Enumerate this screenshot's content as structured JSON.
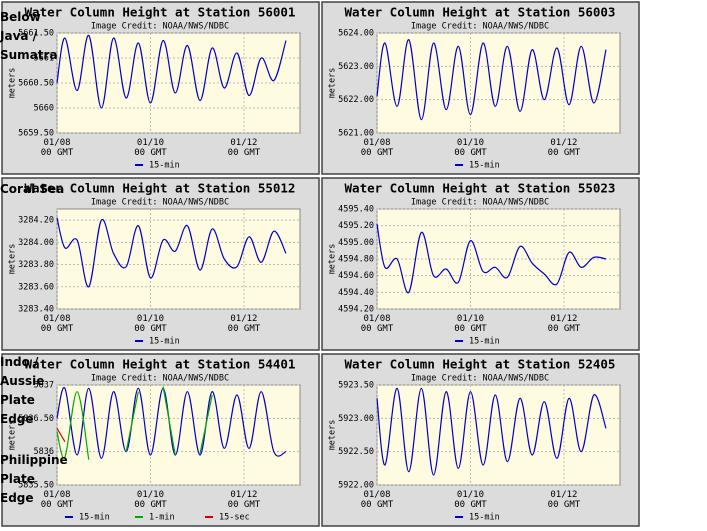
{
  "chart_data": [
    {
      "type": "line",
      "title": "Water Column Height at Station 56001",
      "subtitle": "Image Credit: NOAA/NWS/NDBC",
      "y_label": "meters",
      "x": [
        8.0,
        8.17,
        8.43,
        8.68,
        8.95,
        9.21,
        9.48,
        9.74,
        10.0,
        10.27,
        10.53,
        10.79,
        11.06,
        11.32,
        11.58,
        11.85,
        12.11,
        12.37,
        12.64,
        12.9
      ],
      "series": [
        {
          "name": "15-min",
          "color": "#0000cc",
          "values": [
            5660.5,
            5661.4,
            5660.35,
            5661.45,
            5660.0,
            5661.4,
            5660.2,
            5661.3,
            5660.1,
            5661.35,
            5660.3,
            5661.25,
            5660.15,
            5661.2,
            5660.4,
            5661.1,
            5660.25,
            5661.0,
            5660.55,
            5661.35
          ]
        }
      ],
      "xlim": [
        8,
        13.2
      ],
      "xticks": [
        {
          "value": 8,
          "label": "01/08\n00 GMT"
        },
        {
          "value": 10,
          "label": "01/10\n00 GMT"
        },
        {
          "value": 12,
          "label": "01/12\n00 GMT"
        }
      ],
      "ylim": [
        5659.5,
        5661.5
      ],
      "yticks": [
        {
          "value": 5659.5,
          "label": "5659.50"
        },
        5660,
        {
          "value": 5660.5,
          "label": "5660.50"
        },
        5661,
        {
          "value": 5661.5,
          "label": "5661.50"
        }
      ],
      "grid": true
    },
    {
      "type": "line",
      "title": "Water Column Height at Station 56003",
      "subtitle": "Image Credit: NOAA/NWS/NDBC",
      "y_label": "meters",
      "x": [
        8.0,
        8.17,
        8.43,
        8.68,
        8.95,
        9.21,
        9.48,
        9.74,
        10.0,
        10.27,
        10.53,
        10.79,
        11.06,
        11.32,
        11.58,
        11.85,
        12.11,
        12.37,
        12.64,
        12.9
      ],
      "series": [
        {
          "name": "15-min",
          "color": "#0000cc",
          "values": [
            5622.1,
            5623.7,
            5621.8,
            5623.8,
            5621.4,
            5623.7,
            5621.7,
            5623.6,
            5621.55,
            5623.7,
            5621.8,
            5623.6,
            5621.65,
            5623.5,
            5622.0,
            5623.55,
            5621.85,
            5623.6,
            5621.9,
            5623.5
          ]
        }
      ],
      "xlim": [
        8,
        13.2
      ],
      "xticks": [
        {
          "value": 8,
          "label": "01/08\n00 GMT"
        },
        {
          "value": 10,
          "label": "01/10\n00 GMT"
        },
        {
          "value": 12,
          "label": "01/12\n00 GMT"
        }
      ],
      "ylim": [
        5621,
        5624
      ],
      "yticks": [
        {
          "value": 5621,
          "label": "5621.00"
        },
        {
          "value": 5622,
          "label": "5622.00"
        },
        {
          "value": 5623,
          "label": "5623.00"
        },
        {
          "value": 5624,
          "label": "5624.00"
        }
      ],
      "grid": true
    },
    {
      "type": "line",
      "title": "Water Column Height at Station 55012",
      "subtitle": "Image Credit: NOAA/NWS/NDBC",
      "y_label": "meters",
      "x": [
        8.0,
        8.17,
        8.43,
        8.68,
        8.95,
        9.21,
        9.48,
        9.74,
        10.0,
        10.27,
        10.53,
        10.79,
        11.06,
        11.32,
        11.58,
        11.85,
        12.11,
        12.37,
        12.64,
        12.9
      ],
      "series": [
        {
          "name": "15-min",
          "color": "#0000cc",
          "values": [
            3284.22,
            3283.95,
            3284.02,
            3283.6,
            3284.2,
            3283.9,
            3283.78,
            3284.15,
            3283.68,
            3284.02,
            3283.92,
            3284.15,
            3283.75,
            3284.12,
            3283.85,
            3283.78,
            3284.05,
            3283.82,
            3284.1,
            3283.9
          ]
        }
      ],
      "xlim": [
        8,
        13.2
      ],
      "xticks": [
        {
          "value": 8,
          "label": "01/08\n00 GMT"
        },
        {
          "value": 10,
          "label": "01/10\n00 GMT"
        },
        {
          "value": 12,
          "label": "01/12\n00 GMT"
        }
      ],
      "ylim": [
        3283.4,
        3284.3
      ],
      "yticks": [
        {
          "value": 3283.4,
          "label": "3283.40"
        },
        {
          "value": 3283.6,
          "label": "3283.60"
        },
        {
          "value": 3283.8,
          "label": "3283.80"
        },
        {
          "value": 3284.0,
          "label": "3284.00"
        },
        {
          "value": 3284.2,
          "label": "3284.20"
        }
      ],
      "grid": true
    },
    {
      "type": "line",
      "title": "Water Column Height at Station 55023",
      "subtitle": "Image Credit: NOAA/NWS/NDBC",
      "y_label": "meters",
      "x": [
        8.0,
        8.17,
        8.43,
        8.68,
        8.95,
        9.21,
        9.48,
        9.74,
        10.0,
        10.27,
        10.53,
        10.79,
        11.06,
        11.32,
        11.58,
        11.85,
        12.11,
        12.37,
        12.64,
        12.9
      ],
      "series": [
        {
          "name": "15-min",
          "color": "#0000cc",
          "values": [
            4595.22,
            4594.7,
            4594.8,
            4594.4,
            4595.12,
            4594.6,
            4594.68,
            4594.52,
            4595.02,
            4594.65,
            4594.7,
            4594.58,
            4594.95,
            4594.75,
            4594.62,
            4594.5,
            4594.88,
            4594.7,
            4594.82,
            4594.8
          ]
        }
      ],
      "xlim": [
        8,
        13.2
      ],
      "xticks": [
        {
          "value": 8,
          "label": "01/08\n00 GMT"
        },
        {
          "value": 10,
          "label": "01/10\n00 GMT"
        },
        {
          "value": 12,
          "label": "01/12\n00 GMT"
        }
      ],
      "ylim": [
        4594.2,
        4595.4
      ],
      "yticks": [
        {
          "value": 4594.2,
          "label": "4594.20"
        },
        {
          "value": 4594.4,
          "label": "4594.40"
        },
        {
          "value": 4594.6,
          "label": "4594.60"
        },
        {
          "value": 4594.8,
          "label": "4594.80"
        },
        {
          "value": 4595.0,
          "label": "4595.00"
        },
        {
          "value": 4595.2,
          "label": "4595.20"
        },
        {
          "value": 4595.4,
          "label": "4595.40"
        }
      ],
      "grid": true
    },
    {
      "type": "line",
      "title": "Water Column Height at Station 54401",
      "subtitle": "Image Credit: NOAA/NWS/NDBC",
      "y_label": "meters",
      "x": [
        8.0,
        8.17,
        8.43,
        8.68,
        8.95,
        9.21,
        9.48,
        9.74,
        10.0,
        10.27,
        10.53,
        10.79,
        11.06,
        11.32,
        11.58,
        11.85,
        12.11,
        12.37,
        12.64,
        12.9
      ],
      "series": [
        {
          "name": "15-min",
          "color": "#0000cc",
          "values": [
            5836.5,
            5836.95,
            5835.95,
            5836.95,
            5835.9,
            5836.9,
            5836.0,
            5836.95,
            5835.95,
            5836.95,
            5835.95,
            5836.9,
            5835.95,
            5836.9,
            5836.05,
            5836.85,
            5836.05,
            5836.9,
            5836.0,
            5836.0
          ]
        },
        {
          "name": "1-min",
          "color": "#00aa00",
          "values": [
            5836.3,
            5835.92,
            5836.9,
            5835.88,
            null,
            null,
            5836.0,
            5836.9,
            null,
            5836.98,
            5835.95,
            null,
            5835.97,
            5836.85,
            null,
            null,
            null,
            null,
            null,
            null
          ]
        },
        {
          "name": "15-sec",
          "color": "#cc0000",
          "values": [
            5836.35,
            5836.15,
            null,
            null,
            null,
            null,
            null,
            null,
            null,
            null,
            null,
            null,
            null,
            null,
            null,
            null,
            null,
            null,
            null,
            null
          ]
        }
      ],
      "xlim": [
        8,
        13.2
      ],
      "xticks": [
        {
          "value": 8,
          "label": "01/08\n00 GMT"
        },
        {
          "value": 10,
          "label": "01/10\n00 GMT"
        },
        {
          "value": 12,
          "label": "01/12\n00 GMT"
        }
      ],
      "ylim": [
        5835.5,
        5837
      ],
      "yticks": [
        {
          "value": 5835.5,
          "label": "5835.50"
        },
        5836,
        {
          "value": 5836.5,
          "label": "5836.50"
        },
        5837
      ],
      "grid": true
    },
    {
      "type": "line",
      "title": "Water Column Height at Station 52405",
      "subtitle": "Image Credit: NOAA/NWS/NDBC",
      "y_label": "meters",
      "x": [
        8.0,
        8.17,
        8.43,
        8.68,
        8.95,
        9.21,
        9.48,
        9.74,
        10.0,
        10.27,
        10.53,
        10.79,
        11.06,
        11.32,
        11.58,
        11.85,
        12.11,
        12.37,
        12.64,
        12.9
      ],
      "series": [
        {
          "name": "15-min",
          "color": "#0000cc",
          "values": [
            5923.3,
            5922.3,
            5923.45,
            5922.2,
            5923.45,
            5922.15,
            5923.4,
            5922.25,
            5923.4,
            5922.3,
            5923.35,
            5922.35,
            5923.3,
            5922.45,
            5923.25,
            5922.4,
            5923.3,
            5922.5,
            5923.35,
            5922.85
          ]
        }
      ],
      "xlim": [
        8,
        13.2
      ],
      "xticks": [
        {
          "value": 8,
          "label": "01/08\n00 GMT"
        },
        {
          "value": 10,
          "label": "01/10\n00 GMT"
        },
        {
          "value": 12,
          "label": "01/12\n00 GMT"
        }
      ],
      "ylim": [
        5922,
        5923.5
      ],
      "yticks": [
        {
          "value": 5922,
          "label": "5922.00"
        },
        {
          "value": 5922.5,
          "label": "5922.50"
        },
        {
          "value": 5923,
          "label": "5923.00"
        },
        {
          "value": 5923.5,
          "label": "5923.50"
        }
      ],
      "grid": true
    }
  ],
  "region_labels": [
    "Below\nJava /\nSumatra",
    "Coral Sea",
    "Indo /\nAussie\nPlate\nEdge",
    "Philippine\nPlate\nEdge"
  ]
}
